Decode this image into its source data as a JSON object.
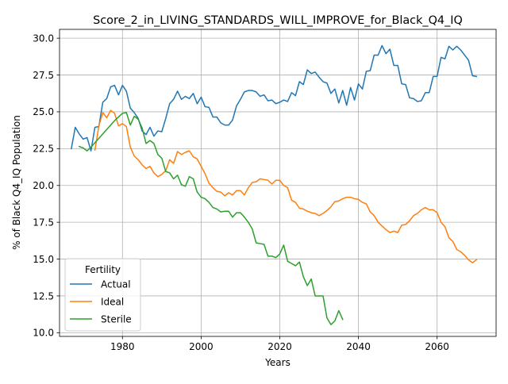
{
  "chart_data": {
    "type": "line",
    "title": "Score_2_in_LIVING_STANDARDS_WILL_IMPROVE_for_Black_Q4_IQ",
    "xlabel": "Years",
    "ylabel": "% of Black Q4_IQ Population",
    "xlim": [
      1964,
      2075
    ],
    "ylim": [
      9.75,
      30.6
    ],
    "xticks": [
      1980,
      2000,
      2020,
      2040,
      2060
    ],
    "yticks": [
      10.0,
      12.5,
      15.0,
      17.5,
      20.0,
      22.5,
      25.0,
      27.5,
      30.0
    ],
    "xtick_labels": [
      "1980",
      "2000",
      "2020",
      "2040",
      "2060"
    ],
    "ytick_labels": [
      "10.0",
      "12.5",
      "15.0",
      "17.5",
      "20.0",
      "22.5",
      "25.0",
      "27.5",
      "30.0"
    ],
    "grid": true,
    "legend": {
      "title": "Fertility",
      "placement": "lower-left"
    },
    "series": [
      {
        "name": "Actual",
        "color": "#1f77b4",
        "x": [
          1967,
          1968,
          1969,
          1970,
          1971,
          1972,
          1973,
          1974,
          1975,
          1976,
          1977,
          1978,
          1979,
          1980,
          1981,
          1982,
          1983,
          1984,
          1985,
          1986,
          1987,
          1988,
          1989,
          1990,
          1991,
          1992,
          1993,
          1994,
          1995,
          1996,
          1997,
          1998,
          1999,
          2000,
          2001,
          2002,
          2003,
          2004,
          2005,
          2006,
          2007,
          2008,
          2009,
          2010,
          2011,
          2012,
          2013,
          2014,
          2015,
          2016,
          2017,
          2018,
          2019,
          2020,
          2021,
          2022,
          2023,
          2024,
          2025,
          2026,
          2027,
          2028,
          2029,
          2030,
          2031,
          2032,
          2033,
          2034,
          2035,
          2036,
          2037,
          2038,
          2039,
          2040,
          2041,
          2042,
          2043,
          2044,
          2045,
          2046,
          2047,
          2048,
          2049,
          2050,
          2051,
          2052,
          2053,
          2054,
          2055,
          2056,
          2057,
          2058,
          2059,
          2060,
          2061,
          2062,
          2063,
          2064,
          2065,
          2066,
          2067,
          2068,
          2069,
          2070
        ],
        "y": [
          22.5,
          23.95,
          23.5,
          23.15,
          23.25,
          22.35,
          23.95,
          24.0,
          25.65,
          25.9,
          26.7,
          26.8,
          26.15,
          26.8,
          26.4,
          25.25,
          24.95,
          24.55,
          23.7,
          23.45,
          23.95,
          23.35,
          23.7,
          23.65,
          24.55,
          25.55,
          25.85,
          26.4,
          25.85,
          26.05,
          25.9,
          26.25,
          25.55,
          26.0,
          25.35,
          25.3,
          24.65,
          24.65,
          24.25,
          24.1,
          24.1,
          24.45,
          25.4,
          25.85,
          26.35,
          26.45,
          26.45,
          26.35,
          26.05,
          26.15,
          25.75,
          25.8,
          25.55,
          25.65,
          25.8,
          25.7,
          26.3,
          26.1,
          27.05,
          26.85,
          27.85,
          27.6,
          27.7,
          27.35,
          27.05,
          26.95,
          26.25,
          26.55,
          25.6,
          26.45,
          25.45,
          26.65,
          25.8,
          26.9,
          26.55,
          27.75,
          27.8,
          28.85,
          28.85,
          29.5,
          28.95,
          29.25,
          28.15,
          28.15,
          26.9,
          26.85,
          25.95,
          25.9,
          25.7,
          25.75,
          26.3,
          26.3,
          27.4,
          27.4,
          28.7,
          28.6,
          29.45,
          29.2,
          29.45,
          29.2,
          28.85,
          28.5,
          27.45,
          27.4
        ]
      },
      {
        "name": "Ideal",
        "color": "#ff7f0e",
        "x": [
          1973,
          1974,
          1975,
          1976,
          1977,
          1978,
          1979,
          1980,
          1981,
          1982,
          1983,
          1984,
          1985,
          1986,
          1987,
          1988,
          1989,
          1990,
          1991,
          1992,
          1993,
          1994,
          1995,
          1996,
          1997,
          1998,
          1999,
          2000,
          2001,
          2002,
          2003,
          2004,
          2005,
          2006,
          2007,
          2008,
          2009,
          2010,
          2011,
          2012,
          2013,
          2014,
          2015,
          2016,
          2017,
          2018,
          2019,
          2020,
          2021,
          2022,
          2023,
          2024,
          2025,
          2026,
          2027,
          2028,
          2029,
          2030,
          2031,
          2032,
          2033,
          2034,
          2035,
          2036,
          2037,
          2038,
          2039,
          2040,
          2041,
          2042,
          2043,
          2044,
          2045,
          2046,
          2047,
          2048,
          2049,
          2050,
          2051,
          2052,
          2053,
          2054,
          2055,
          2056,
          2057,
          2058,
          2059,
          2060,
          2061,
          2062,
          2063,
          2064,
          2065,
          2066,
          2067,
          2068,
          2069,
          2070
        ],
        "y": [
          22.4,
          24.05,
          24.95,
          24.6,
          25.1,
          24.9,
          24.05,
          24.2,
          24.0,
          22.6,
          22.0,
          21.75,
          21.4,
          21.15,
          21.3,
          20.85,
          20.6,
          20.75,
          21.0,
          21.75,
          21.5,
          22.3,
          22.1,
          22.25,
          22.35,
          21.95,
          21.8,
          21.3,
          20.8,
          20.15,
          19.85,
          19.6,
          19.55,
          19.3,
          19.5,
          19.35,
          19.65,
          19.65,
          19.35,
          19.85,
          20.2,
          20.25,
          20.45,
          20.4,
          20.35,
          20.1,
          20.35,
          20.35,
          20.0,
          19.85,
          19.0,
          18.85,
          18.45,
          18.4,
          18.25,
          18.15,
          18.1,
          17.95,
          18.1,
          18.3,
          18.55,
          18.9,
          18.95,
          19.1,
          19.2,
          19.2,
          19.1,
          19.05,
          18.85,
          18.75,
          18.2,
          17.95,
          17.5,
          17.25,
          17.0,
          16.8,
          16.9,
          16.8,
          17.3,
          17.35,
          17.6,
          17.95,
          18.1,
          18.35,
          18.5,
          18.35,
          18.35,
          18.15,
          17.5,
          17.2,
          16.45,
          16.2,
          15.65,
          15.5,
          15.25,
          14.95,
          14.75,
          14.95
        ]
      },
      {
        "name": "Sterile",
        "color": "#2ca02c",
        "x": [
          1969,
          1970,
          1971,
          1972,
          1973,
          1974,
          1975,
          1976,
          1977,
          1978,
          1979,
          1980,
          1981,
          1982,
          1983,
          1984,
          1985,
          1986,
          1987,
          1988,
          1989,
          1990,
          1991,
          1992,
          1993,
          1994,
          1995,
          1996,
          1997,
          1998,
          1999,
          2000,
          2001,
          2002,
          2003,
          2004,
          2005,
          2006,
          2007,
          2008,
          2009,
          2010,
          2011,
          2012,
          2013,
          2014,
          2015,
          2016,
          2017,
          2018,
          2019,
          2020,
          2021,
          2022,
          2023,
          2024,
          2025,
          2026,
          2027,
          2028,
          2029,
          2030,
          2031,
          2032,
          2033,
          2034,
          2035,
          2036
        ],
        "y": [
          22.65,
          22.55,
          22.35,
          22.6,
          22.9,
          23.2,
          23.5,
          23.8,
          24.1,
          24.4,
          24.65,
          24.9,
          24.95,
          24.1,
          24.7,
          24.5,
          23.9,
          22.85,
          23.05,
          22.85,
          22.1,
          21.85,
          20.95,
          20.85,
          20.45,
          20.7,
          20.05,
          19.95,
          20.6,
          20.45,
          19.55,
          19.2,
          19.1,
          18.85,
          18.5,
          18.4,
          18.2,
          18.25,
          18.25,
          17.85,
          18.15,
          18.15,
          17.85,
          17.5,
          17.05,
          16.1,
          16.05,
          16.0,
          15.2,
          15.2,
          15.1,
          15.35,
          15.95,
          14.85,
          14.7,
          14.55,
          14.8,
          13.8,
          13.2,
          13.65,
          12.5,
          12.5,
          12.5,
          11.0,
          10.55,
          10.8,
          11.5,
          10.9
        ]
      }
    ]
  }
}
